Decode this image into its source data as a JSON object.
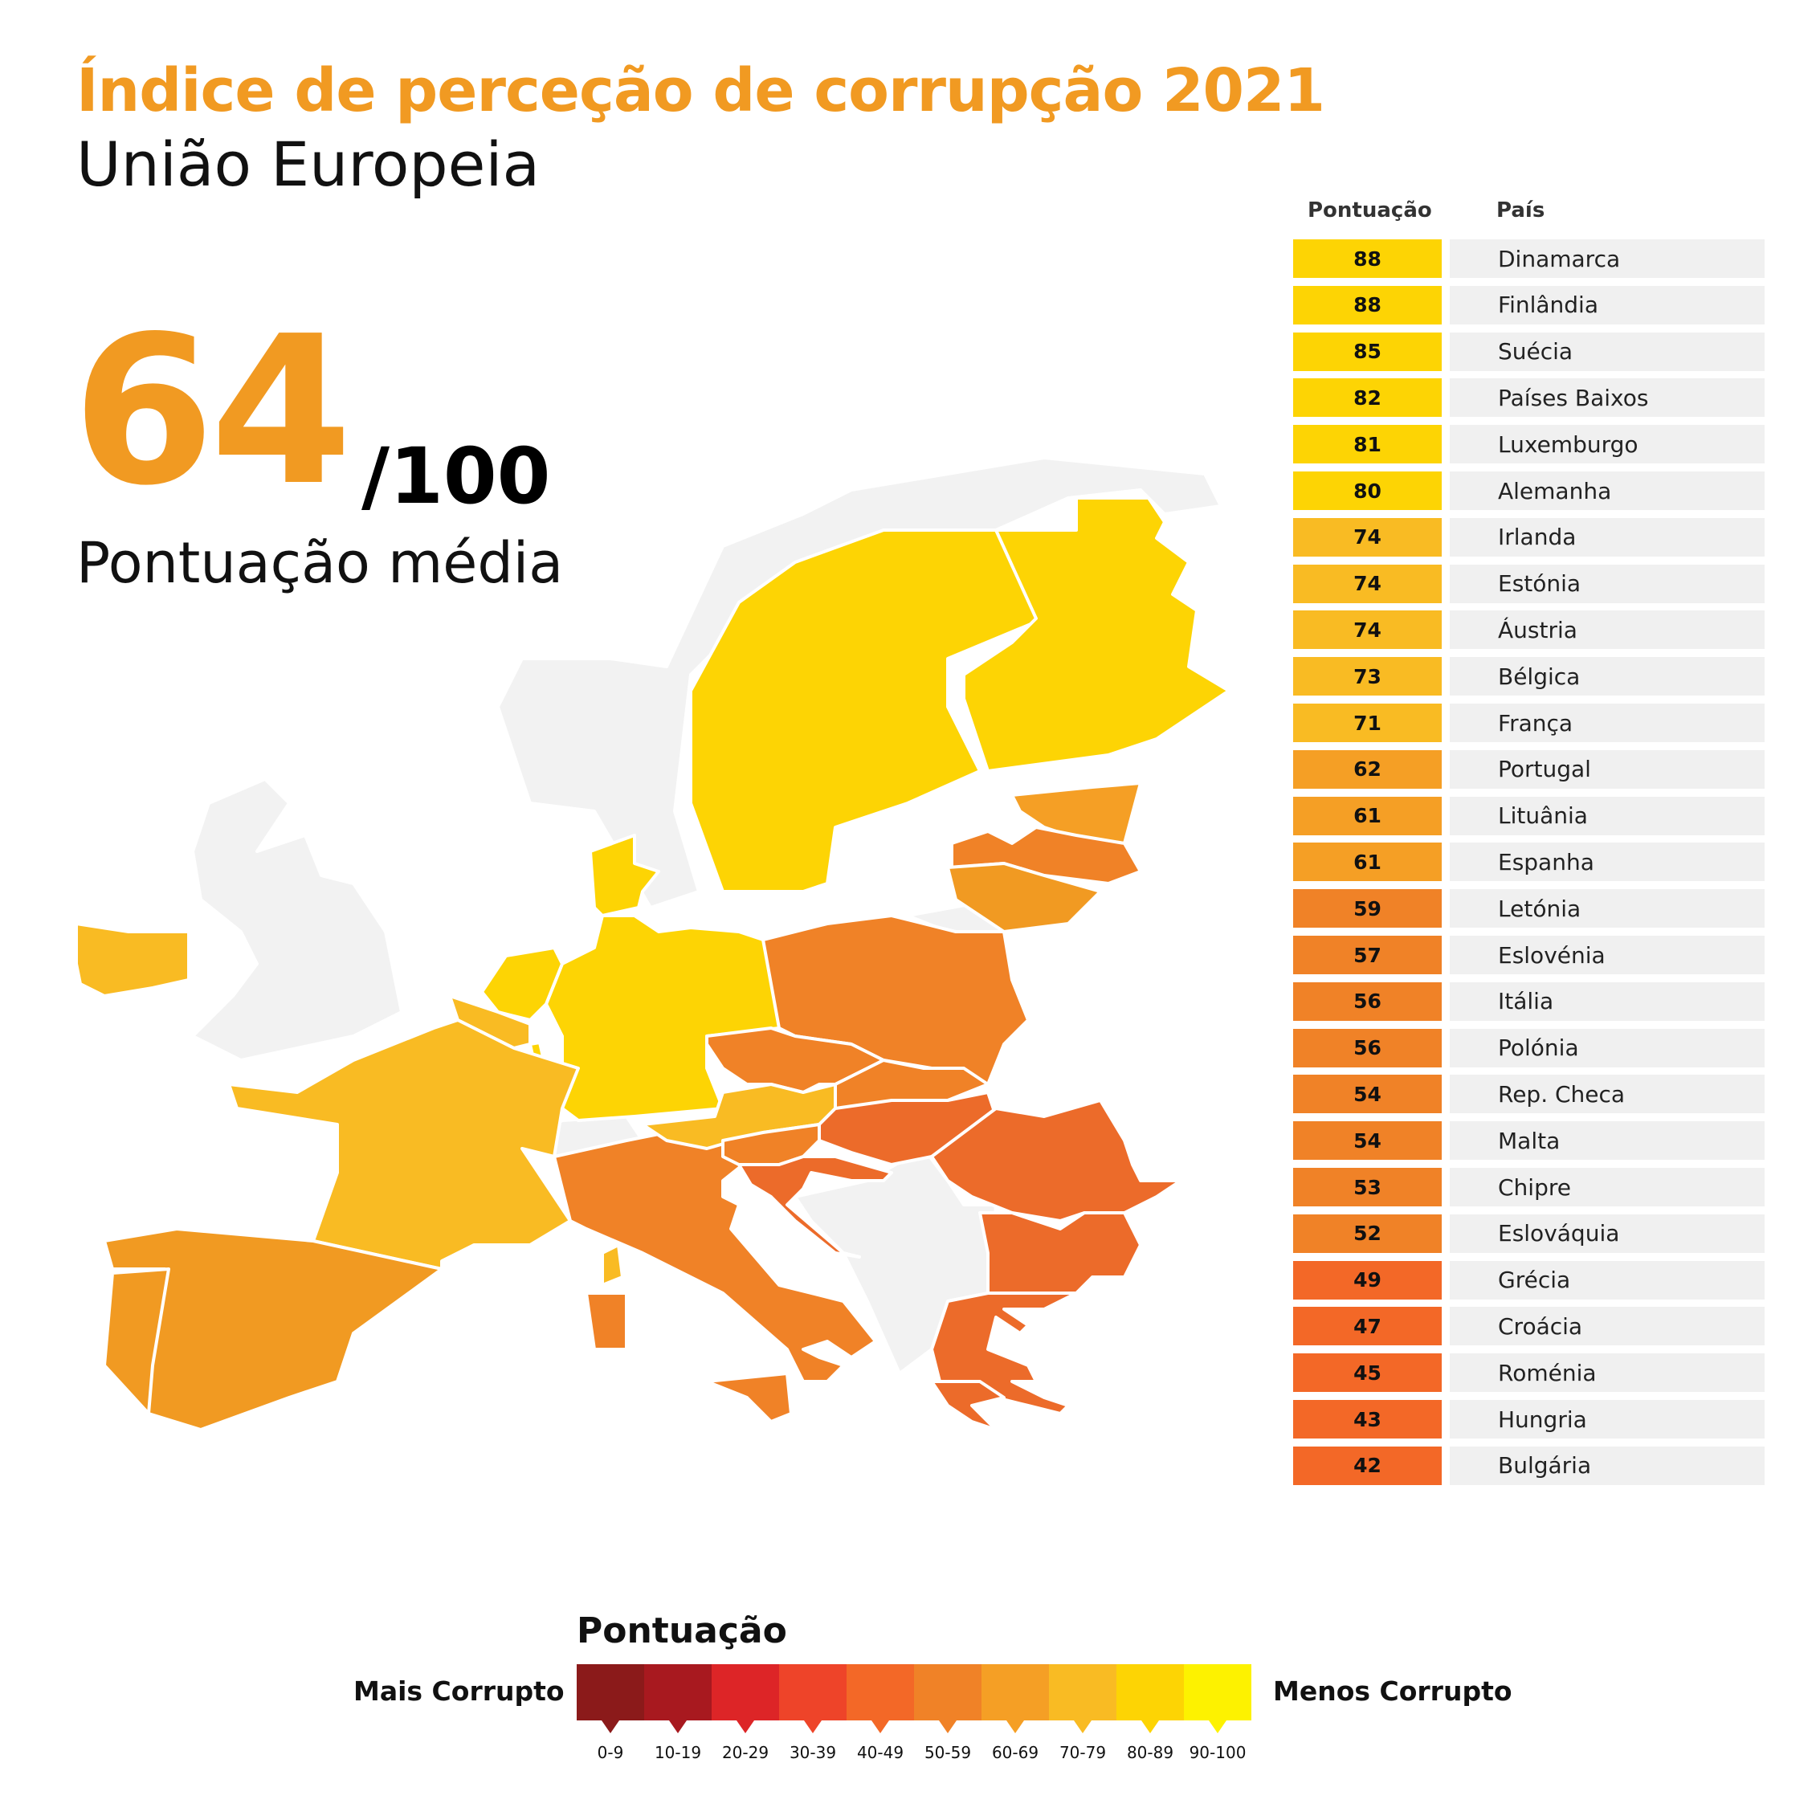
{
  "header": {
    "title": "Índice de perceção de corrupção 2021",
    "subtitle": "União Europeia"
  },
  "average": {
    "value": "64",
    "max": "/100",
    "label": "Pontuação média"
  },
  "colors": {
    "accent": "#f19a22",
    "map_non_eu": "#f2f2f2",
    "bins": [
      "#8b1a1a",
      "#a8191f",
      "#dd2527",
      "#ee4429",
      "#f36827",
      "#f08227",
      "#f59f25",
      "#f9bb23",
      "#fdd404",
      "#fdf200"
    ]
  },
  "chart_data": {
    "type": "table",
    "columns": [
      "Pontuação",
      "País"
    ],
    "rows": [
      {
        "score": 88,
        "country": "Dinamarca"
      },
      {
        "score": 88,
        "country": "Finlândia"
      },
      {
        "score": 85,
        "country": "Suécia"
      },
      {
        "score": 82,
        "country": "Países Baixos"
      },
      {
        "score": 81,
        "country": "Luxemburgo"
      },
      {
        "score": 80,
        "country": "Alemanha"
      },
      {
        "score": 74,
        "country": "Irlanda"
      },
      {
        "score": 74,
        "country": "Estónia"
      },
      {
        "score": 74,
        "country": "Áustria"
      },
      {
        "score": 73,
        "country": "Bélgica"
      },
      {
        "score": 71,
        "country": "França"
      },
      {
        "score": 62,
        "country": "Portugal"
      },
      {
        "score": 61,
        "country": "Lituânia"
      },
      {
        "score": 61,
        "country": "Espanha"
      },
      {
        "score": 59,
        "country": "Letónia"
      },
      {
        "score": 57,
        "country": "Eslovénia"
      },
      {
        "score": 56,
        "country": "Itália"
      },
      {
        "score": 56,
        "country": "Polónia"
      },
      {
        "score": 54,
        "country": "Rep. Checa"
      },
      {
        "score": 54,
        "country": "Malta"
      },
      {
        "score": 53,
        "country": "Chipre"
      },
      {
        "score": 52,
        "country": "Eslováquia"
      },
      {
        "score": 49,
        "country": "Grécia"
      },
      {
        "score": 47,
        "country": "Croácia"
      },
      {
        "score": 45,
        "country": "Roménia"
      },
      {
        "score": 43,
        "country": "Hungria"
      },
      {
        "score": 42,
        "country": "Bulgária"
      }
    ]
  },
  "legend": {
    "title": "Pontuação",
    "left_label": "Mais Corrupto",
    "right_label": "Menos Corrupto",
    "bins": [
      "0-9",
      "10-19",
      "20-29",
      "30-39",
      "40-49",
      "50-59",
      "60-69",
      "70-79",
      "80-89",
      "90-100"
    ]
  }
}
